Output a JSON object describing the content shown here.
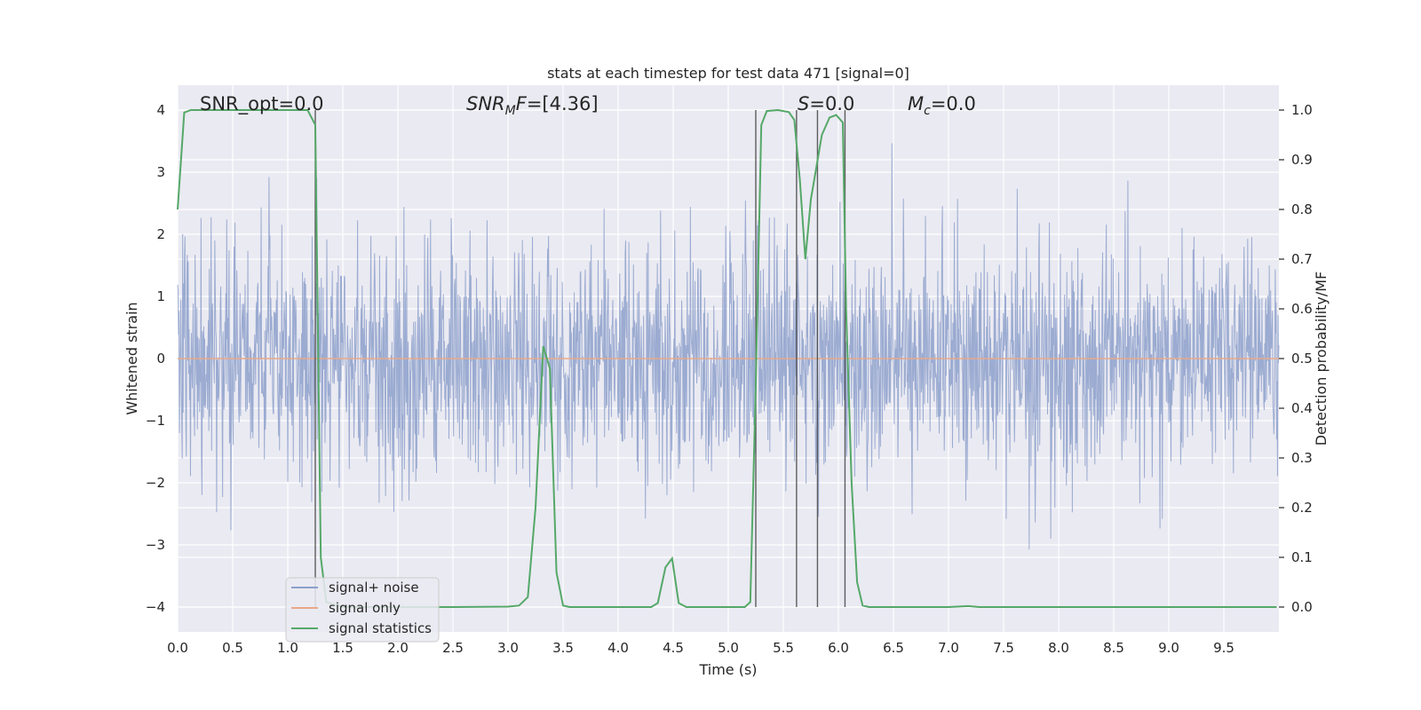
{
  "chart_data": {
    "type": "line",
    "title": "stats at each timestep for test data 471 [signal=0]",
    "xlabel": "Time (s)",
    "ylabel": "Whitened strain",
    "y2label": "Detection probability/MF",
    "xlim": [
      0,
      10
    ],
    "ylim": [
      -4.4,
      4.4
    ],
    "y2lim": [
      -0.05,
      1.05
    ],
    "x_ticks": [
      0.0,
      0.5,
      1.0,
      1.5,
      2.0,
      2.5,
      3.0,
      3.5,
      4.0,
      4.5,
      5.0,
      5.5,
      6.0,
      6.5,
      7.0,
      7.5,
      8.0,
      8.5,
      9.0,
      9.5
    ],
    "x_tick_labels": [
      "0.0",
      "0.5",
      "1.0",
      "1.5",
      "2.0",
      "2.5",
      "3.0",
      "3.5",
      "4.0",
      "4.5",
      "5.0",
      "5.5",
      "6.0",
      "6.5",
      "7.0",
      "7.5",
      "8.0",
      "8.5",
      "9.0",
      "9.5"
    ],
    "y_ticks": [
      -4,
      -3,
      -2,
      -1,
      0,
      1,
      2,
      3,
      4
    ],
    "y_tick_labels": [
      "−4",
      "−3",
      "−2",
      "−1",
      "0",
      "1",
      "2",
      "3",
      "4"
    ],
    "y2_ticks": [
      0.0,
      0.1,
      0.2,
      0.3,
      0.4,
      0.5,
      0.6,
      0.7,
      0.8,
      0.9,
      1.0
    ],
    "y2_tick_labels": [
      "0.0",
      "0.1",
      "0.2",
      "0.3",
      "0.4",
      "0.5",
      "0.6",
      "0.7",
      "0.8",
      "0.9",
      "1.0"
    ],
    "annotations": {
      "snr_opt": "SNR_opt=0.0",
      "snr_mf_italic": "SNR",
      "snr_mf_sub": "M",
      "snr_mf_italic2": "F",
      "snr_mf_value": "=[4.36]",
      "s_italic": "S",
      "s_value": "=0.0",
      "mc_italic": "M",
      "mc_sub": "c",
      "mc_value": "=0.0"
    },
    "vertical_lines_x": [
      1.25,
      5.25,
      5.62,
      5.81,
      6.06
    ],
    "series": [
      {
        "name": "signal+ noise",
        "axis": "left",
        "color": "#8da0cb",
        "description": "whitened noise, roughly gaussian, sigma about 0.9, samples over 0-10 s",
        "amplitude_sigma": 0.9
      },
      {
        "name": "signal only",
        "axis": "left",
        "color": "#e8a888",
        "x": [
          0,
          10
        ],
        "y": [
          0,
          0
        ]
      },
      {
        "name": "signal statistics",
        "axis": "right",
        "color": "#55a868",
        "x": [
          0.0,
          0.06,
          0.12,
          0.2,
          0.4,
          0.6,
          0.8,
          1.0,
          1.18,
          1.25,
          1.3,
          1.35,
          1.5,
          2.0,
          2.5,
          3.0,
          3.1,
          3.18,
          3.25,
          3.32,
          3.38,
          3.44,
          3.5,
          3.56,
          3.65,
          4.0,
          4.3,
          4.36,
          4.43,
          4.49,
          4.55,
          4.62,
          5.0,
          5.15,
          5.2,
          5.25,
          5.3,
          5.35,
          5.45,
          5.55,
          5.6,
          5.65,
          5.7,
          5.75,
          5.85,
          5.92,
          5.98,
          6.04,
          6.07,
          6.12,
          6.17,
          6.22,
          6.28,
          6.35,
          6.6,
          7.0,
          7.18,
          7.28,
          8.0,
          9.0,
          9.98
        ],
        "y": [
          0.8,
          0.995,
          1.0,
          1.0,
          1.0,
          1.0,
          1.0,
          1.0,
          1.0,
          0.97,
          0.1,
          0.01,
          0.0,
          0.0,
          0.0,
          0.001,
          0.003,
          0.02,
          0.2,
          0.525,
          0.48,
          0.07,
          0.003,
          0.0,
          0.0,
          0.0,
          0.0,
          0.008,
          0.08,
          0.098,
          0.008,
          0.0,
          0.0,
          0.0,
          0.01,
          0.45,
          0.97,
          0.998,
          1.0,
          0.996,
          0.98,
          0.86,
          0.7,
          0.82,
          0.95,
          0.985,
          0.99,
          0.975,
          0.6,
          0.25,
          0.05,
          0.003,
          0.0,
          0.0,
          0.0,
          0.0,
          0.002,
          0.0,
          0.0,
          0.0,
          0.0
        ]
      }
    ],
    "legend": {
      "location": "lower-left",
      "entries": [
        "signal+ noise",
        "signal only",
        "signal statistics"
      ]
    },
    "grid": true
  }
}
